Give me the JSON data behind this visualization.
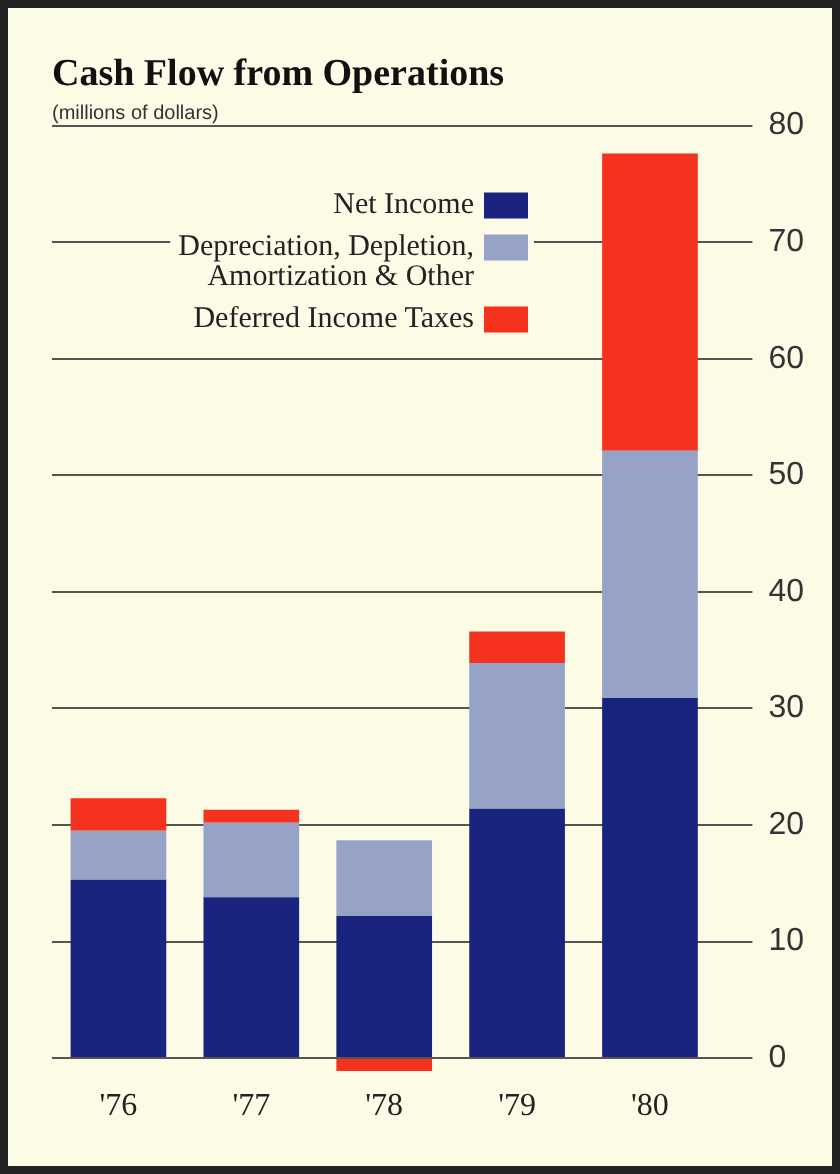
{
  "chart_data": {
    "type": "bar",
    "title": "Cash Flow from Operations",
    "subtitle": "(millions of dollars)",
    "categories": [
      "'76",
      "'77",
      "'78",
      "'79",
      "'80"
    ],
    "series": [
      {
        "name": "Net Income",
        "color": "#1a237e",
        "values": [
          15.3,
          13.8,
          12.2,
          21.4,
          30.9
        ]
      },
      {
        "name": "Depreciation, Depletion, Amortization & Other",
        "color": "#97a3c6",
        "values": [
          4.2,
          6.4,
          6.5,
          12.5,
          21.2
        ]
      },
      {
        "name": "Deferred Income Taxes",
        "color": "#f5321e",
        "values": [
          2.8,
          1.1,
          -1.1,
          2.7,
          25.5
        ]
      }
    ],
    "stacked": true,
    "ylim": [
      -1.5,
      80
    ],
    "yticks": [
      0,
      10,
      20,
      30,
      40,
      50,
      60,
      70,
      80
    ],
    "grid": "y",
    "legend": "top left"
  }
}
